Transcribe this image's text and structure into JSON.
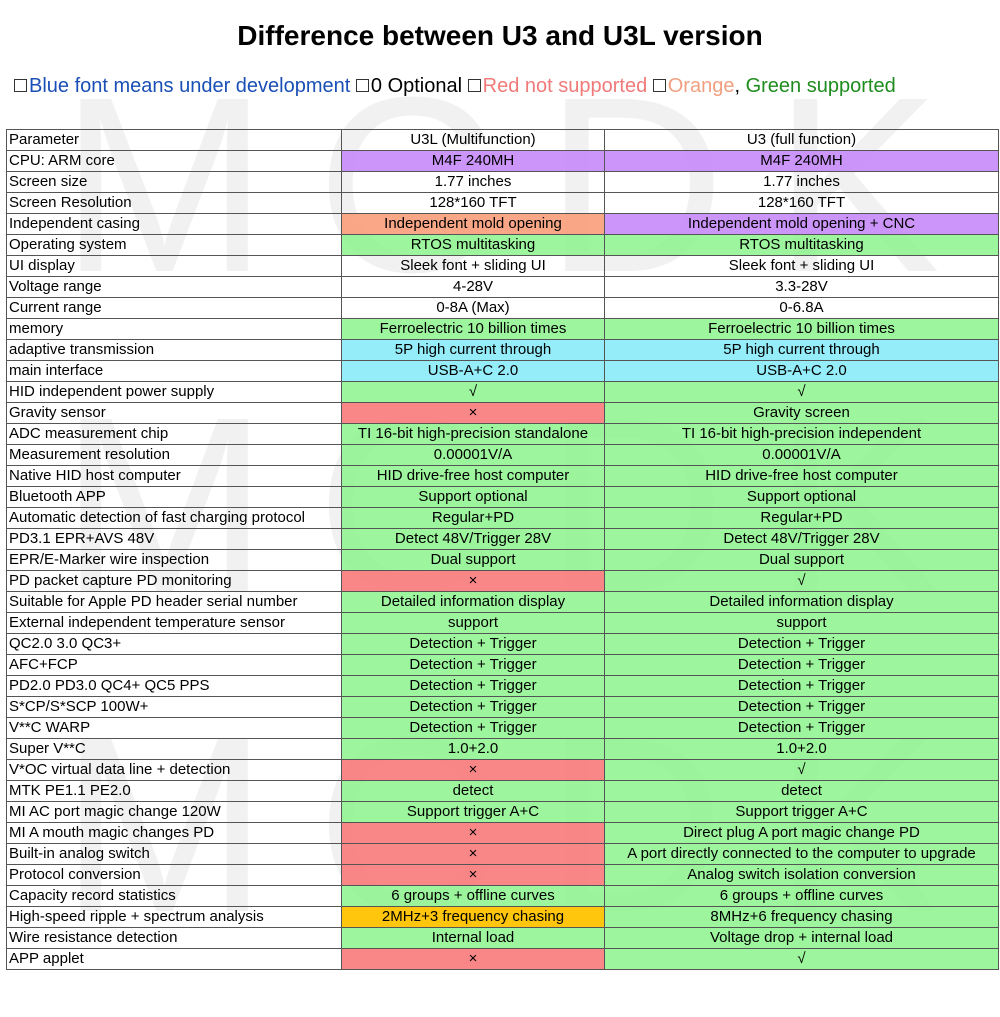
{
  "title": "Difference between U3 and U3L version",
  "legend": {
    "blue": "Blue font means under development",
    "optional": "0 Optional",
    "red": "Red not supported",
    "orange": "Orange",
    "comma": ",",
    "green": "Green supported"
  },
  "watermark": "MCDK",
  "colors": {
    "green": "#8cf58c",
    "red": "#fa7d7d",
    "purple": "#c88cfa",
    "sky": "#8cebfa",
    "salmon": "#f8a07d",
    "amber": "#ffc300"
  },
  "table": {
    "header": [
      "Parameter",
      "U3L (Multifunction)",
      "U3 (full function)"
    ],
    "rows": [
      {
        "param": "CPU: ARM core",
        "u3l": "M4F 240MH",
        "u3": "M4F 240MH",
        "u3l_color": "p",
        "u3_color": "p"
      },
      {
        "param": "Screen size",
        "u3l": "1.77 inches",
        "u3": "1.77 inches",
        "u3l_color": "w",
        "u3_color": "w"
      },
      {
        "param": "Screen Resolution",
        "u3l": "128*160 TFT",
        "u3": "128*160 TFT",
        "u3l_color": "w",
        "u3_color": "w"
      },
      {
        "param": "Independent casing",
        "u3l": "Independent mold opening",
        "u3": "Independent mold opening + CNC",
        "u3l_color": "o",
        "u3_color": "p"
      },
      {
        "param": "Operating system",
        "u3l": "RTOS multitasking",
        "u3": "RTOS multitasking",
        "u3l_color": "g",
        "u3_color": "g"
      },
      {
        "param": "UI display",
        "u3l": "Sleek font + sliding UI",
        "u3": "Sleek font + sliding UI",
        "u3l_color": "w",
        "u3_color": "w"
      },
      {
        "param": "Voltage range",
        "u3l": "4-28V",
        "u3": "3.3-28V",
        "u3l_color": "w",
        "u3_color": "w"
      },
      {
        "param": "Current range",
        "u3l": "0-8A (Max)",
        "u3": "0-6.8A",
        "u3l_color": "w",
        "u3_color": "w"
      },
      {
        "param": "memory",
        "u3l": "Ferroelectric 10 billion times",
        "u3": "Ferroelectric 10 billion times",
        "u3l_color": "g",
        "u3_color": "g"
      },
      {
        "param": "adaptive transmission",
        "u3l": "5P high current through",
        "u3": "5P high current through",
        "u3l_color": "s",
        "u3_color": "s"
      },
      {
        "param": "main interface",
        "u3l": "USB-A+C 2.0",
        "u3": "USB-A+C 2.0",
        "u3l_color": "s",
        "u3_color": "s"
      },
      {
        "param": "HID independent power supply",
        "u3l": "√",
        "u3": "√",
        "u3l_color": "g",
        "u3_color": "g"
      },
      {
        "param": "Gravity sensor",
        "u3l": "×",
        "u3": "Gravity screen",
        "u3l_color": "r",
        "u3_color": "g"
      },
      {
        "param": "ADC measurement chip",
        "u3l": "TI 16-bit high-precision standalone",
        "u3": "TI 16-bit high-precision independent",
        "u3l_color": "g",
        "u3_color": "g"
      },
      {
        "param": "Measurement resolution",
        "u3l": "0.00001V/A",
        "u3": "0.00001V/A",
        "u3l_color": "g",
        "u3_color": "g"
      },
      {
        "param": "Native HID host computer",
        "u3l": "HID drive-free host computer",
        "u3": "HID drive-free host computer",
        "u3l_color": "g",
        "u3_color": "g"
      },
      {
        "param": "Bluetooth APP",
        "u3l": "Support optional",
        "u3": "Support optional",
        "u3l_color": "g",
        "u3_color": "g"
      },
      {
        "param": "Automatic detection of fast charging protocol",
        "u3l": "Regular+PD",
        "u3": "Regular+PD",
        "u3l_color": "g",
        "u3_color": "g"
      },
      {
        "param": "PD3.1 EPR+AVS 48V",
        "u3l": "Detect 48V/Trigger 28V",
        "u3": "Detect 48V/Trigger 28V",
        "u3l_color": "g",
        "u3_color": "g"
      },
      {
        "param": "EPR/E-Marker wire inspection",
        "u3l": "Dual support",
        "u3": "Dual support",
        "u3l_color": "g",
        "u3_color": "g"
      },
      {
        "param": "PD packet capture PD monitoring",
        "u3l": "×",
        "u3": "√",
        "u3l_color": "r",
        "u3_color": "g"
      },
      {
        "param": "Suitable for Apple PD header serial number",
        "u3l": "Detailed information display",
        "u3": "Detailed information display",
        "u3l_color": "g",
        "u3_color": "g"
      },
      {
        "param": "External independent temperature sensor",
        "u3l": "support",
        "u3": "support",
        "u3l_color": "g",
        "u3_color": "g"
      },
      {
        "param": "QC2.0 3.0 QC3+",
        "u3l": "Detection + Trigger",
        "u3": "Detection + Trigger",
        "u3l_color": "g",
        "u3_color": "g"
      },
      {
        "param": "AFC+FCP",
        "u3l": "Detection + Trigger",
        "u3": "Detection + Trigger",
        "u3l_color": "g",
        "u3_color": "g"
      },
      {
        "param": "PD2.0 PD3.0 QC4+ QC5 PPS",
        "u3l": "Detection + Trigger",
        "u3": "Detection + Trigger",
        "u3l_color": "g",
        "u3_color": "g"
      },
      {
        "param": "S*CP/S*SCP 100W+",
        "u3l": "Detection + Trigger",
        "u3": "Detection + Trigger",
        "u3l_color": "g",
        "u3_color": "g"
      },
      {
        "param": "V**C WARP",
        "u3l": "Detection + Trigger",
        "u3": "Detection + Trigger",
        "u3l_color": "g",
        "u3_color": "g"
      },
      {
        "param": "Super V**C",
        "u3l": "1.0+2.0",
        "u3": "1.0+2.0",
        "u3l_color": "g",
        "u3_color": "g"
      },
      {
        "param": "V*OC virtual data line + detection",
        "u3l": "×",
        "u3": "√",
        "u3l_color": "r",
        "u3_color": "g"
      },
      {
        "param": "MTK PE1.1 PE2.0",
        "u3l": "detect",
        "u3": "detect",
        "u3l_color": "g",
        "u3_color": "g"
      },
      {
        "param": "MI AC port magic change 120W",
        "u3l": "Support trigger A+C",
        "u3": "Support trigger A+C",
        "u3l_color": "g",
        "u3_color": "g"
      },
      {
        "param": "MI A mouth magic changes PD",
        "u3l": "×",
        "u3": "Direct plug A port magic change PD",
        "u3l_color": "r",
        "u3_color": "g"
      },
      {
        "param": "Built-in analog switch",
        "u3l": "×",
        "u3": "A port directly connected to the computer to upgrade",
        "u3l_color": "r",
        "u3_color": "g"
      },
      {
        "param": "Protocol conversion",
        "u3l": "×",
        "u3": "Analog switch isolation conversion",
        "u3l_color": "r",
        "u3_color": "g"
      },
      {
        "param": "Capacity record statistics",
        "u3l": "6 groups + offline curves",
        "u3": "6 groups + offline curves",
        "u3l_color": "g",
        "u3_color": "g"
      },
      {
        "param": "High-speed ripple + spectrum analysis",
        "u3l": "2MHz+3 frequency chasing",
        "u3": "8MHz+6 frequency chasing",
        "u3l_color": "y",
        "u3_color": "g"
      },
      {
        "param": "Wire resistance detection",
        "u3l": "Internal load",
        "u3": "Voltage drop + internal load",
        "u3l_color": "g",
        "u3_color": "g"
      },
      {
        "param": "APP applet",
        "u3l": "×",
        "u3": "√",
        "u3l_color": "r",
        "u3_color": "g"
      }
    ]
  }
}
